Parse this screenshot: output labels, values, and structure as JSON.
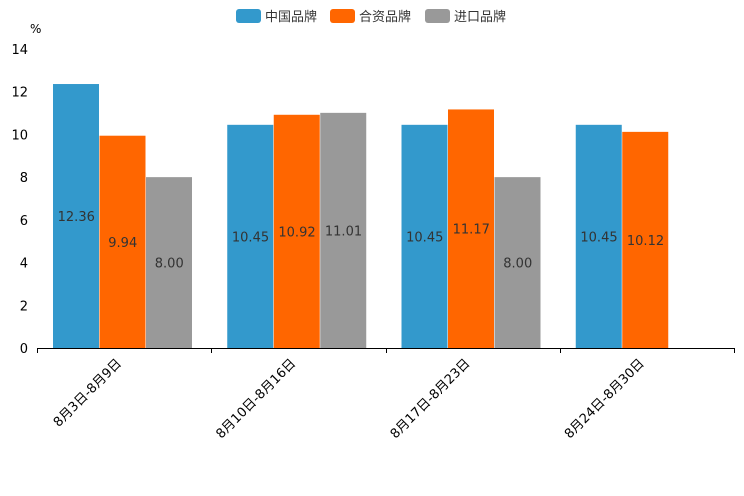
{
  "chart_data": {
    "type": "bar",
    "title": "",
    "ylabel": "%",
    "xlabel": "",
    "ylim": [
      0,
      14
    ],
    "yticks": [
      0,
      2,
      4,
      6,
      8,
      10,
      12,
      14
    ],
    "legend_position": "top-center",
    "categories": [
      "8月3日-8月9日",
      "8月10日-8月16日",
      "8月17日-8月23日",
      "8月24日-8月30日"
    ],
    "series": [
      {
        "name": "中国品牌",
        "color": "#3399cc",
        "values": [
          12.36,
          10.45,
          10.45,
          10.45
        ],
        "labels": [
          "12.36",
          "10.45",
          "10.45",
          "10.45"
        ]
      },
      {
        "name": "合资品牌",
        "color": "#ff6600",
        "values": [
          9.94,
          10.92,
          11.17,
          10.12
        ],
        "labels": [
          "9.94",
          "10.92",
          "11.17",
          "10.12"
        ]
      },
      {
        "name": "进口品牌",
        "color": "#999999",
        "values": [
          8.0,
          11.01,
          8.0,
          null
        ],
        "labels": [
          "8.00",
          "11.01",
          "8.00",
          null
        ]
      }
    ]
  }
}
